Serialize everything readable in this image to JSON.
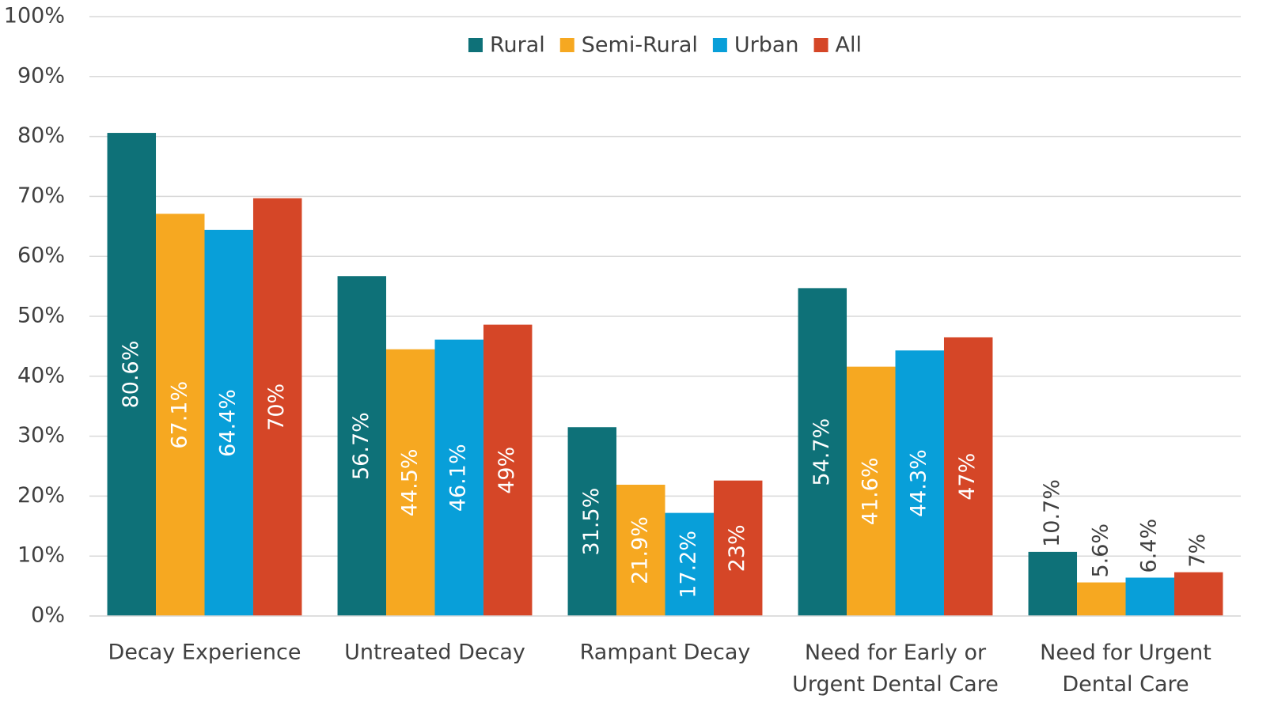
{
  "chart_data": {
    "type": "bar",
    "categories": [
      "Decay Experience",
      "Untreated Decay",
      "Rampant Decay",
      "Need for Early or Urgent Dental Care",
      "Need for Urgent Dental Care"
    ],
    "series": [
      {
        "name": "Rural",
        "color": "#0e7178",
        "values": [
          80.6,
          56.7,
          31.5,
          54.7,
          10.7
        ],
        "value_labels": [
          "80.6%",
          "56.7%",
          "31.5%",
          "54.7%",
          "10.7%"
        ]
      },
      {
        "name": "Semi-Rural",
        "color": "#f6a821",
        "values": [
          67.1,
          44.5,
          21.9,
          41.6,
          5.6
        ],
        "value_labels": [
          "67.1%",
          "44.5%",
          "21.9%",
          "41.6%",
          "5.6%"
        ]
      },
      {
        "name": "Urban",
        "color": "#089fd9",
        "values": [
          64.4,
          46.1,
          17.2,
          44.3,
          6.4
        ],
        "value_labels": [
          "64.4%",
          "46.1%",
          "17.2%",
          "44.3%",
          "6.4%"
        ]
      },
      {
        "name": "All",
        "color": "#d54627",
        "values": [
          69.7,
          48.6,
          22.6,
          46.5,
          7.3
        ],
        "value_labels": [
          "70%",
          "49%",
          "23%",
          "47%",
          "7%"
        ]
      }
    ],
    "ylim": [
      0,
      100
    ],
    "yticks": [
      {
        "value": 0,
        "label": "0%"
      },
      {
        "value": 10,
        "label": "10%"
      },
      {
        "value": 20,
        "label": "20%"
      },
      {
        "value": 30,
        "label": "30%"
      },
      {
        "value": 40,
        "label": "40%"
      },
      {
        "value": 50,
        "label": "50%"
      },
      {
        "value": 60,
        "label": "60%"
      },
      {
        "value": 70,
        "label": "70%"
      },
      {
        "value": 80,
        "label": "80%"
      },
      {
        "value": 90,
        "label": "90%"
      },
      {
        "value": 100,
        "label": "100%"
      }
    ],
    "grid": true,
    "legend": "top"
  }
}
